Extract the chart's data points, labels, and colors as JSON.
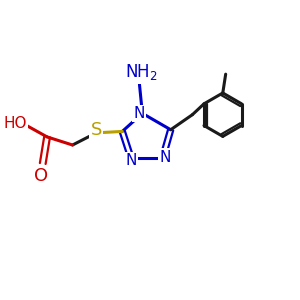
{
  "background_color": "#ffffff",
  "bond_color_black": "#1a1a1a",
  "bond_color_red": "#cc0000",
  "bond_color_blue": "#0000cc",
  "bond_color_yellow": "#b8a000",
  "atom_color_red": "#cc0000",
  "atom_color_blue": "#0000cc",
  "atom_color_yellow": "#b8a000",
  "atom_color_black": "#1a1a1a",
  "figsize": [
    3.0,
    3.0
  ],
  "dpi": 100,
  "xlim": [
    0,
    10
  ],
  "ylim": [
    0,
    10
  ]
}
